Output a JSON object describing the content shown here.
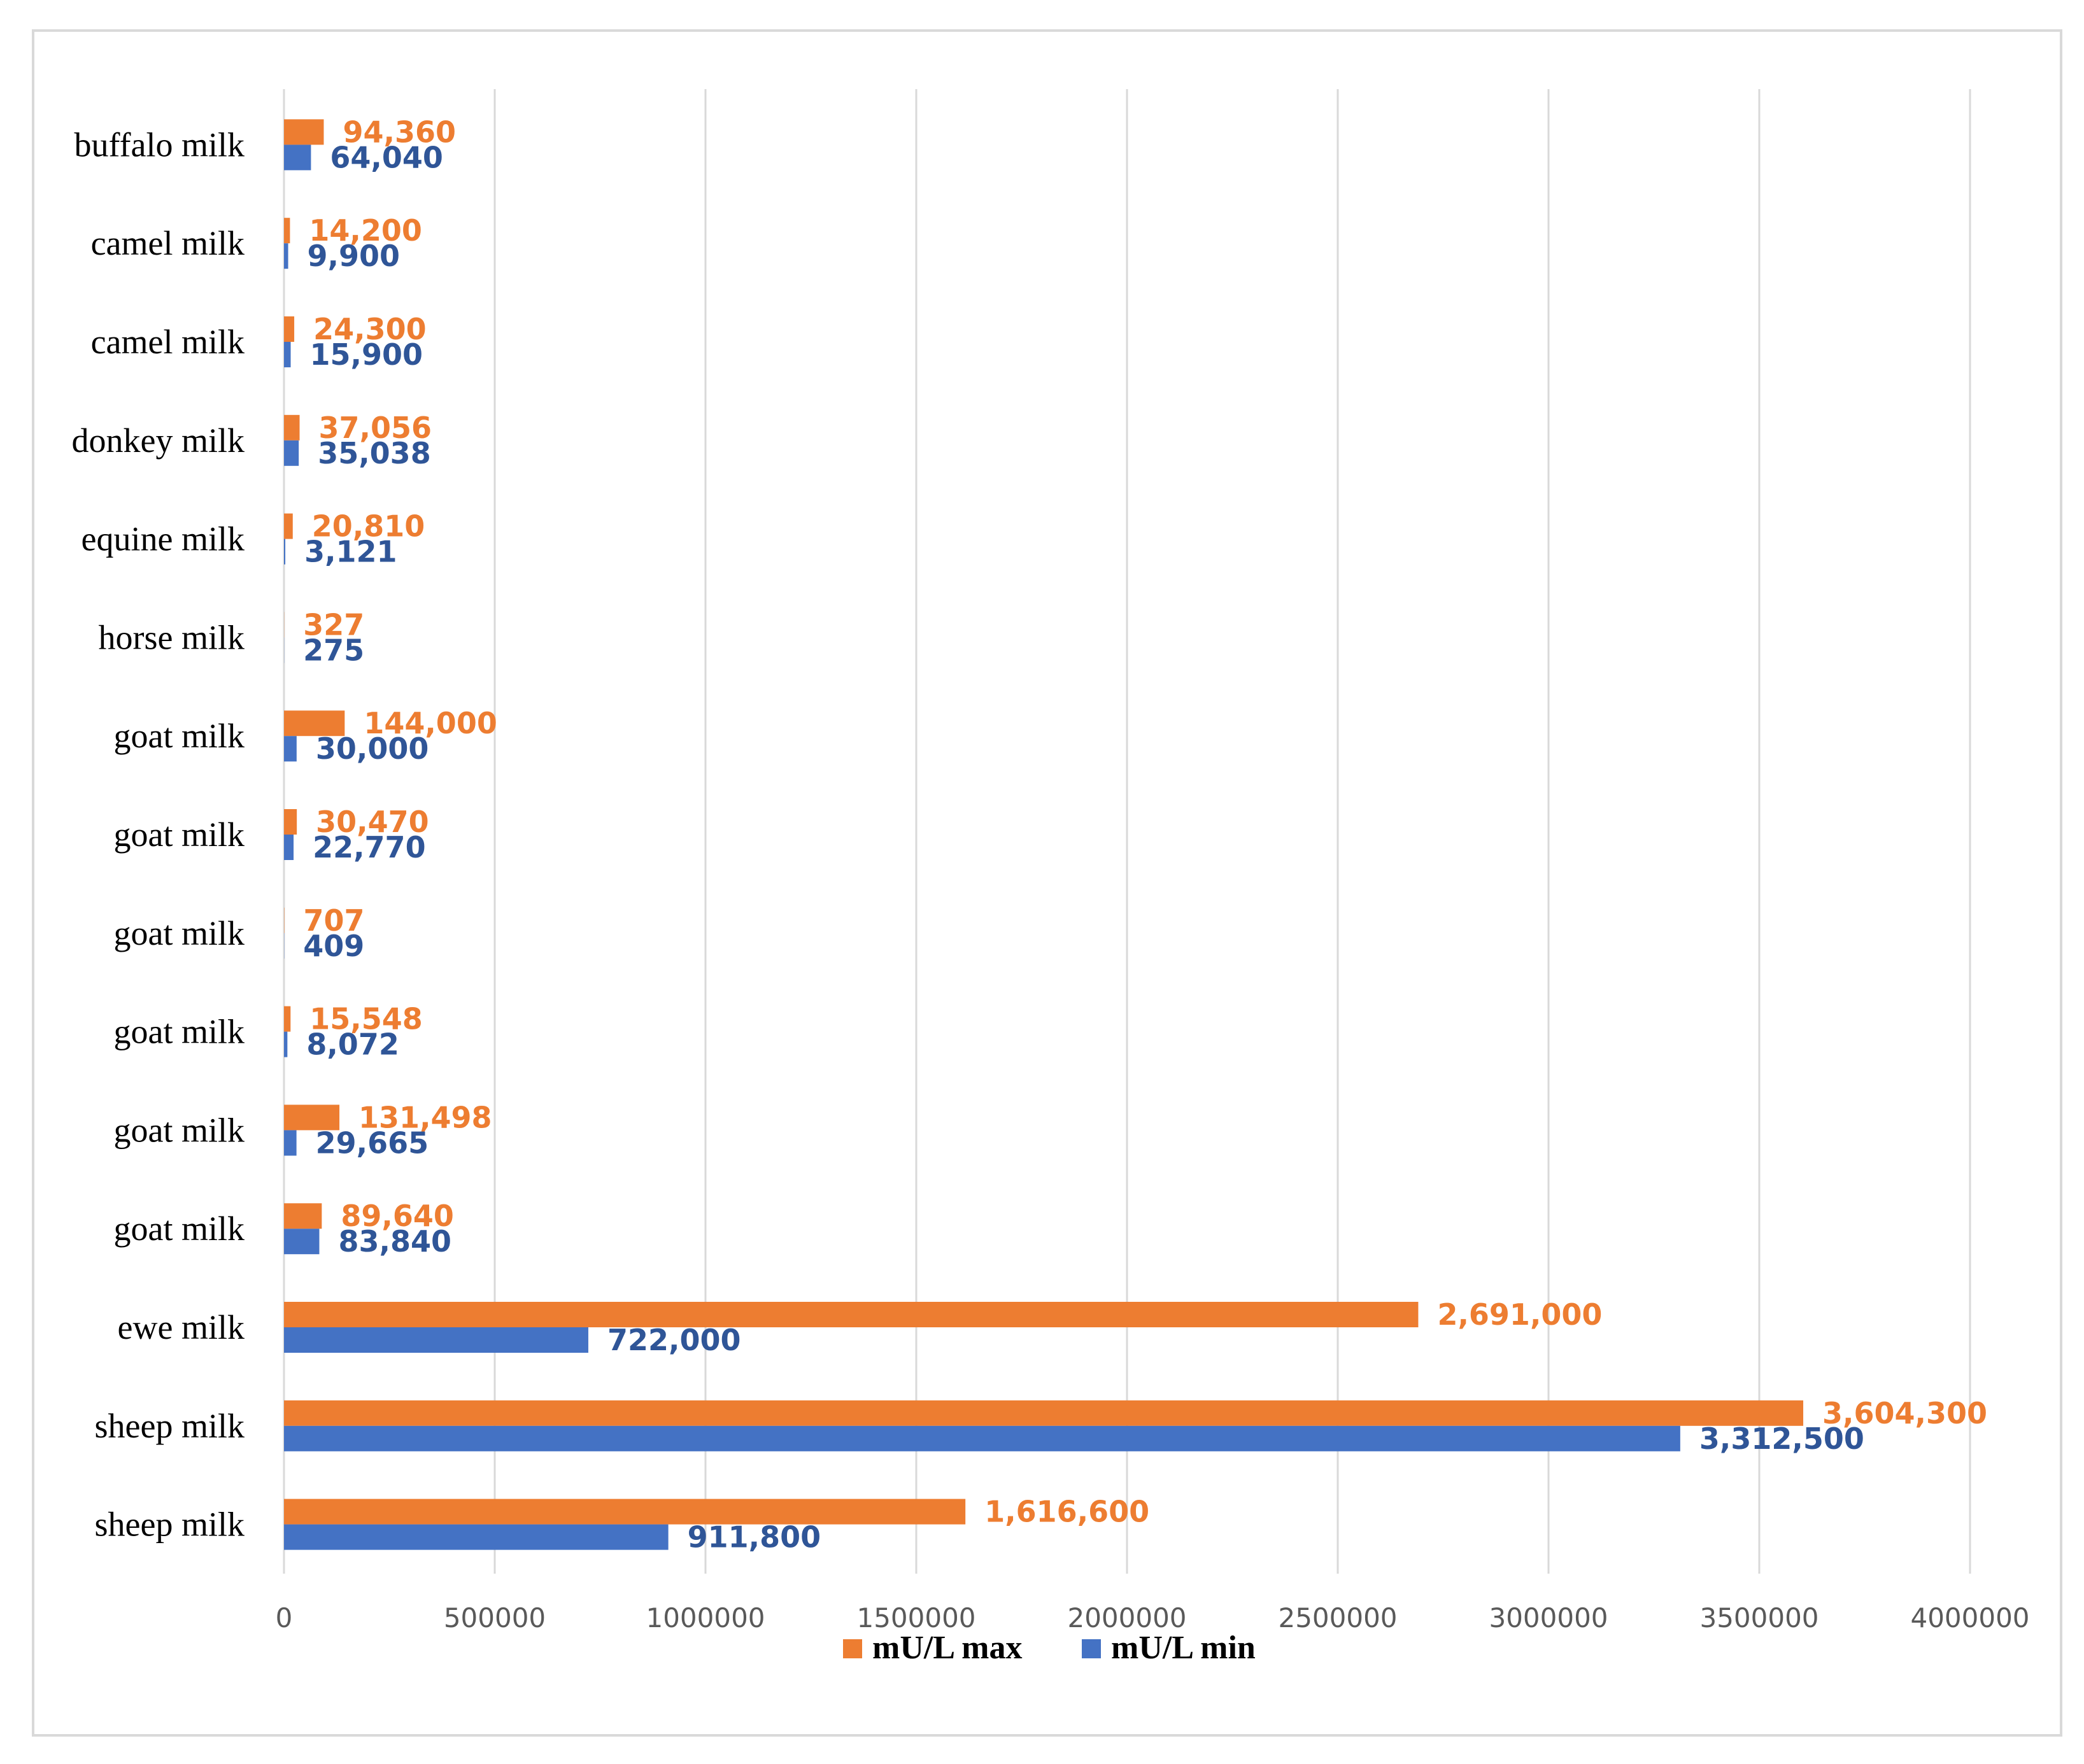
{
  "chart_data": {
    "type": "bar",
    "orientation": "horizontal",
    "categories": [
      "buffalo milk",
      "camel milk",
      "camel milk",
      "donkey milk",
      "equine milk",
      "horse milk",
      "goat milk",
      "goat milk",
      "goat milk",
      "goat milk",
      "goat milk",
      "goat milk",
      "ewe milk",
      "sheep milk",
      "sheep milk"
    ],
    "series": [
      {
        "name": "mU/L max",
        "color": "#ED7D31",
        "values": [
          94360,
          14200,
          24300,
          37056,
          20810,
          327,
          144000,
          30470,
          707,
          15548,
          131498,
          89640,
          2691000,
          3604300,
          1616600
        ],
        "labels": [
          "94,360",
          "14,200",
          "24,300",
          "37,056",
          "20,810",
          "327",
          "144,000",
          "30,470",
          "707",
          "15,548",
          "131,498",
          "89,640",
          "2,691,000",
          "3,604,300",
          "1,616,600"
        ]
      },
      {
        "name": "mU/L min",
        "color": "#4472C4",
        "values": [
          64040,
          9900,
          15900,
          35038,
          3121,
          275,
          30000,
          22770,
          409,
          8072,
          29665,
          83840,
          722000,
          3312500,
          911800
        ],
        "labels": [
          "64,040",
          "9,900",
          "15,900",
          "35,038",
          "3,121",
          "275",
          "30,000",
          "22,770",
          "409",
          "8,072",
          "29,665",
          "83,840",
          "722,000",
          "3,312,500",
          "911,800"
        ]
      }
    ],
    "x_ticks": [
      "0",
      "500000",
      "1000000",
      "1500000",
      "2000000",
      "2500000",
      "3000000",
      "3500000",
      "4000000"
    ],
    "xlim": [
      0,
      4000000
    ],
    "grid": "vertical",
    "legend_position": "bottom",
    "title": "",
    "xlabel": "",
    "ylabel": ""
  }
}
